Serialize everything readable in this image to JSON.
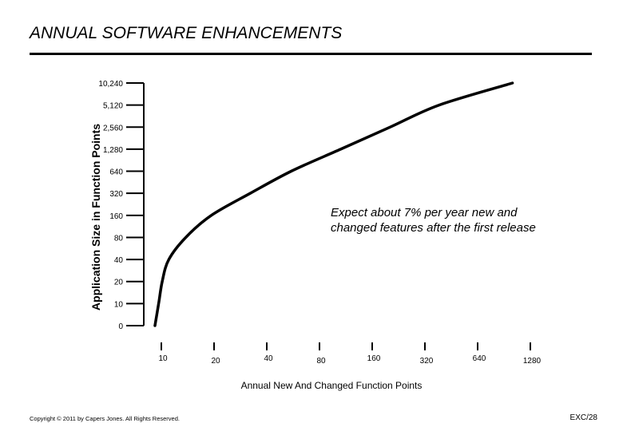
{
  "slide": {
    "title": "ANNUAL SOFTWARE ENHANCEMENTS",
    "callout": "Expect about 7% per year new and changed features after the first release",
    "copyright": "Copyright © 2011 by Capers Jones.  All Rights Reserved.",
    "page_code": "EXC/28"
  },
  "chart_data": {
    "type": "line",
    "title": "",
    "xlabel": "Annual New And Changed Function Points",
    "ylabel": "Application Size in Function Points",
    "y_ticks": [
      "10,240",
      "5,120",
      "2,560",
      "1,280",
      "640",
      "320",
      "160",
      "80",
      "40",
      "20",
      "10",
      "0"
    ],
    "x_ticks": [
      "10",
      "20",
      "40",
      "80",
      "160",
      "320",
      "640",
      "1280"
    ],
    "x_scale": "log2",
    "y_scale": "log2",
    "grid": false,
    "series": [
      {
        "points": [
          {
            "x": 10,
            "y": 5
          },
          {
            "x": 10.5,
            "y": 10
          },
          {
            "x": 11,
            "y": 20
          },
          {
            "x": 12,
            "y": 40
          },
          {
            "x": 15,
            "y": 80
          },
          {
            "x": 21,
            "y": 160
          },
          {
            "x": 35,
            "y": 320
          },
          {
            "x": 60,
            "y": 640
          },
          {
            "x": 115,
            "y": 1280
          },
          {
            "x": 220,
            "y": 2560
          },
          {
            "x": 420,
            "y": 5120
          },
          {
            "x": 1100,
            "y": 10240
          }
        ]
      }
    ]
  }
}
